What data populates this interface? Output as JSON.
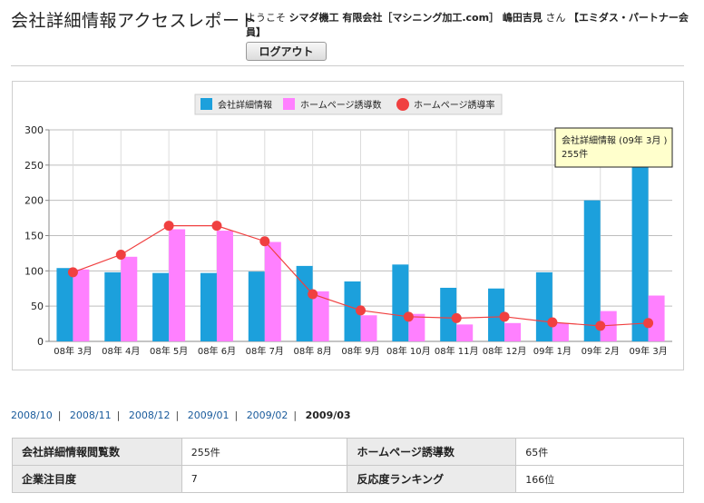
{
  "header": {
    "page_title": "会社詳細情報アクセスレポート",
    "welcome_prefix": "ようこそ",
    "company": "シマダ機工 有限会社［マシニング加工.com］ 嶋田吉見",
    "honorific": "さん",
    "membership": "【エミダス・パートナー会員】",
    "logout_label": "ログアウト"
  },
  "chart_data": {
    "type": "bar",
    "title": "",
    "xlabel": "",
    "ylabel": "",
    "ylim": [
      0,
      300
    ],
    "yticks": [
      0,
      50,
      100,
      150,
      200,
      250,
      300
    ],
    "grid": true,
    "legend_position": "top-center",
    "categories": [
      "08年 3月",
      "08年 4月",
      "08年 5月",
      "08年 6月",
      "08年 7月",
      "08年 8月",
      "08年 9月",
      "08年 10月",
      "08年 11月",
      "08年 12月",
      "09年 1月",
      "09年 2月",
      "09年 3月"
    ],
    "series": [
      {
        "name": "会社詳細情報",
        "type": "bar",
        "color": "#1ca0dc",
        "values": [
          104,
          98,
          97,
          97,
          99,
          107,
          85,
          109,
          76,
          75,
          98,
          200,
          255
        ]
      },
      {
        "name": "ホームページ誘導数",
        "type": "bar",
        "color": "#ff80ff",
        "values": [
          102,
          120,
          159,
          157,
          141,
          71,
          37,
          39,
          24,
          26,
          26,
          43,
          65
        ]
      },
      {
        "name": "ホームページ誘導率",
        "type": "line",
        "color": "#f04040",
        "values": [
          98,
          123,
          164,
          164,
          142,
          67,
          44,
          35,
          33,
          35,
          27,
          22,
          26
        ]
      }
    ],
    "tooltip": {
      "line1": "会社詳細情報 (09年 3月 )",
      "line2": "255件"
    }
  },
  "month_nav": {
    "links": [
      "2008/10",
      "2008/11",
      "2008/12",
      "2009/01",
      "2009/02"
    ],
    "current": "2009/03"
  },
  "stats_table": {
    "rows": [
      [
        {
          "label": "会社詳細情報閲覧数",
          "value": "255件"
        },
        {
          "label": "ホームページ誘導数",
          "value": "65件"
        }
      ],
      [
        {
          "label": "企業注目度",
          "value": "7"
        },
        {
          "label": "反応度ランキング",
          "value": "166位"
        }
      ]
    ]
  }
}
